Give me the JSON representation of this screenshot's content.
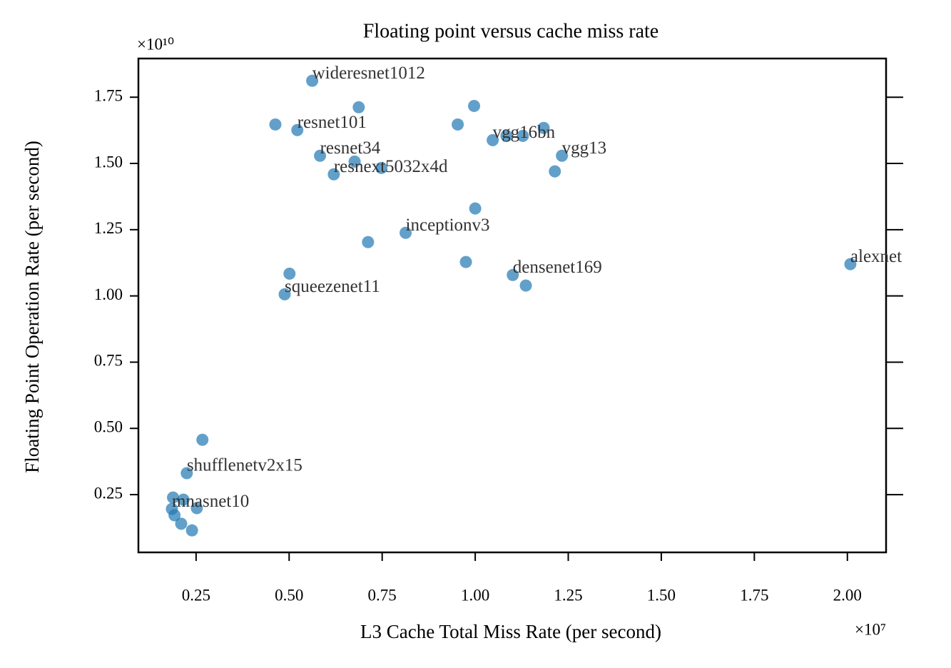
{
  "chart_data": {
    "type": "scatter",
    "title": "Floating point versus cache miss rate",
    "x_label": "L3 Cache Total Miss Rate (per second)",
    "y_label": "Floating Point Operation Rate (per second)",
    "x_offset_label": "×10⁷",
    "y_offset_label": "×10¹⁰",
    "color": "#1f77b4",
    "xlim": [
      0.095,
      2.104
    ],
    "ylim": [
      0.032,
      1.896
    ],
    "xticks": [
      0.25,
      {
        "value": 0.5,
        "label": "0.50"
      },
      0.75,
      {
        "value": 1,
        "label": "1.00"
      },
      1.25,
      {
        "value": 1.5,
        "label": "1.50"
      },
      1.75,
      {
        "value": 2,
        "label": "2.00"
      }
    ],
    "yticks": [
      0.25,
      {
        "value": 0.5,
        "label": "0.50"
      },
      0.75,
      {
        "value": 1,
        "label": "1.00"
      },
      1.25,
      {
        "value": 1.5,
        "label": "1.50"
      },
      1.75
    ],
    "x": [
      0.562,
      0.687,
      0.997,
      0.463,
      0.522,
      0.953,
      1.047,
      1.084,
      1.128,
      1.184,
      1.233,
      1.214,
      0.583,
      0.676,
      0.748,
      0.62,
      1.0,
      0.813,
      0.712,
      0.975,
      0.501,
      0.488,
      1.101,
      1.136,
      2.008,
      0.267,
      0.225,
      0.188,
      0.216,
      0.185,
      0.252,
      0.192,
      0.21,
      0.239
    ],
    "values": [
      1.812,
      1.712,
      1.717,
      1.647,
      1.626,
      1.647,
      1.588,
      1.604,
      1.604,
      1.634,
      1.529,
      1.47,
      1.529,
      1.507,
      1.483,
      1.459,
      1.33,
      1.238,
      1.203,
      1.128,
      1.084,
      1.006,
      1.079,
      1.039,
      1.12,
      0.457,
      0.331,
      0.239,
      0.231,
      0.196,
      0.199,
      0.172,
      0.14,
      0.115
    ],
    "point_labels": [
      "wideresnet1012",
      null,
      null,
      null,
      "resnet101",
      null,
      "vgg16bn",
      null,
      null,
      null,
      "vgg13",
      null,
      "resnet34",
      null,
      null,
      "resnext5032x4d",
      null,
      "inceptionv3",
      null,
      null,
      null,
      "squeezenet11",
      "densenet169",
      null,
      "alexnet",
      null,
      "shufflenetv2x15",
      null,
      null,
      "mnasnet10",
      null,
      null,
      null,
      null
    ]
  }
}
